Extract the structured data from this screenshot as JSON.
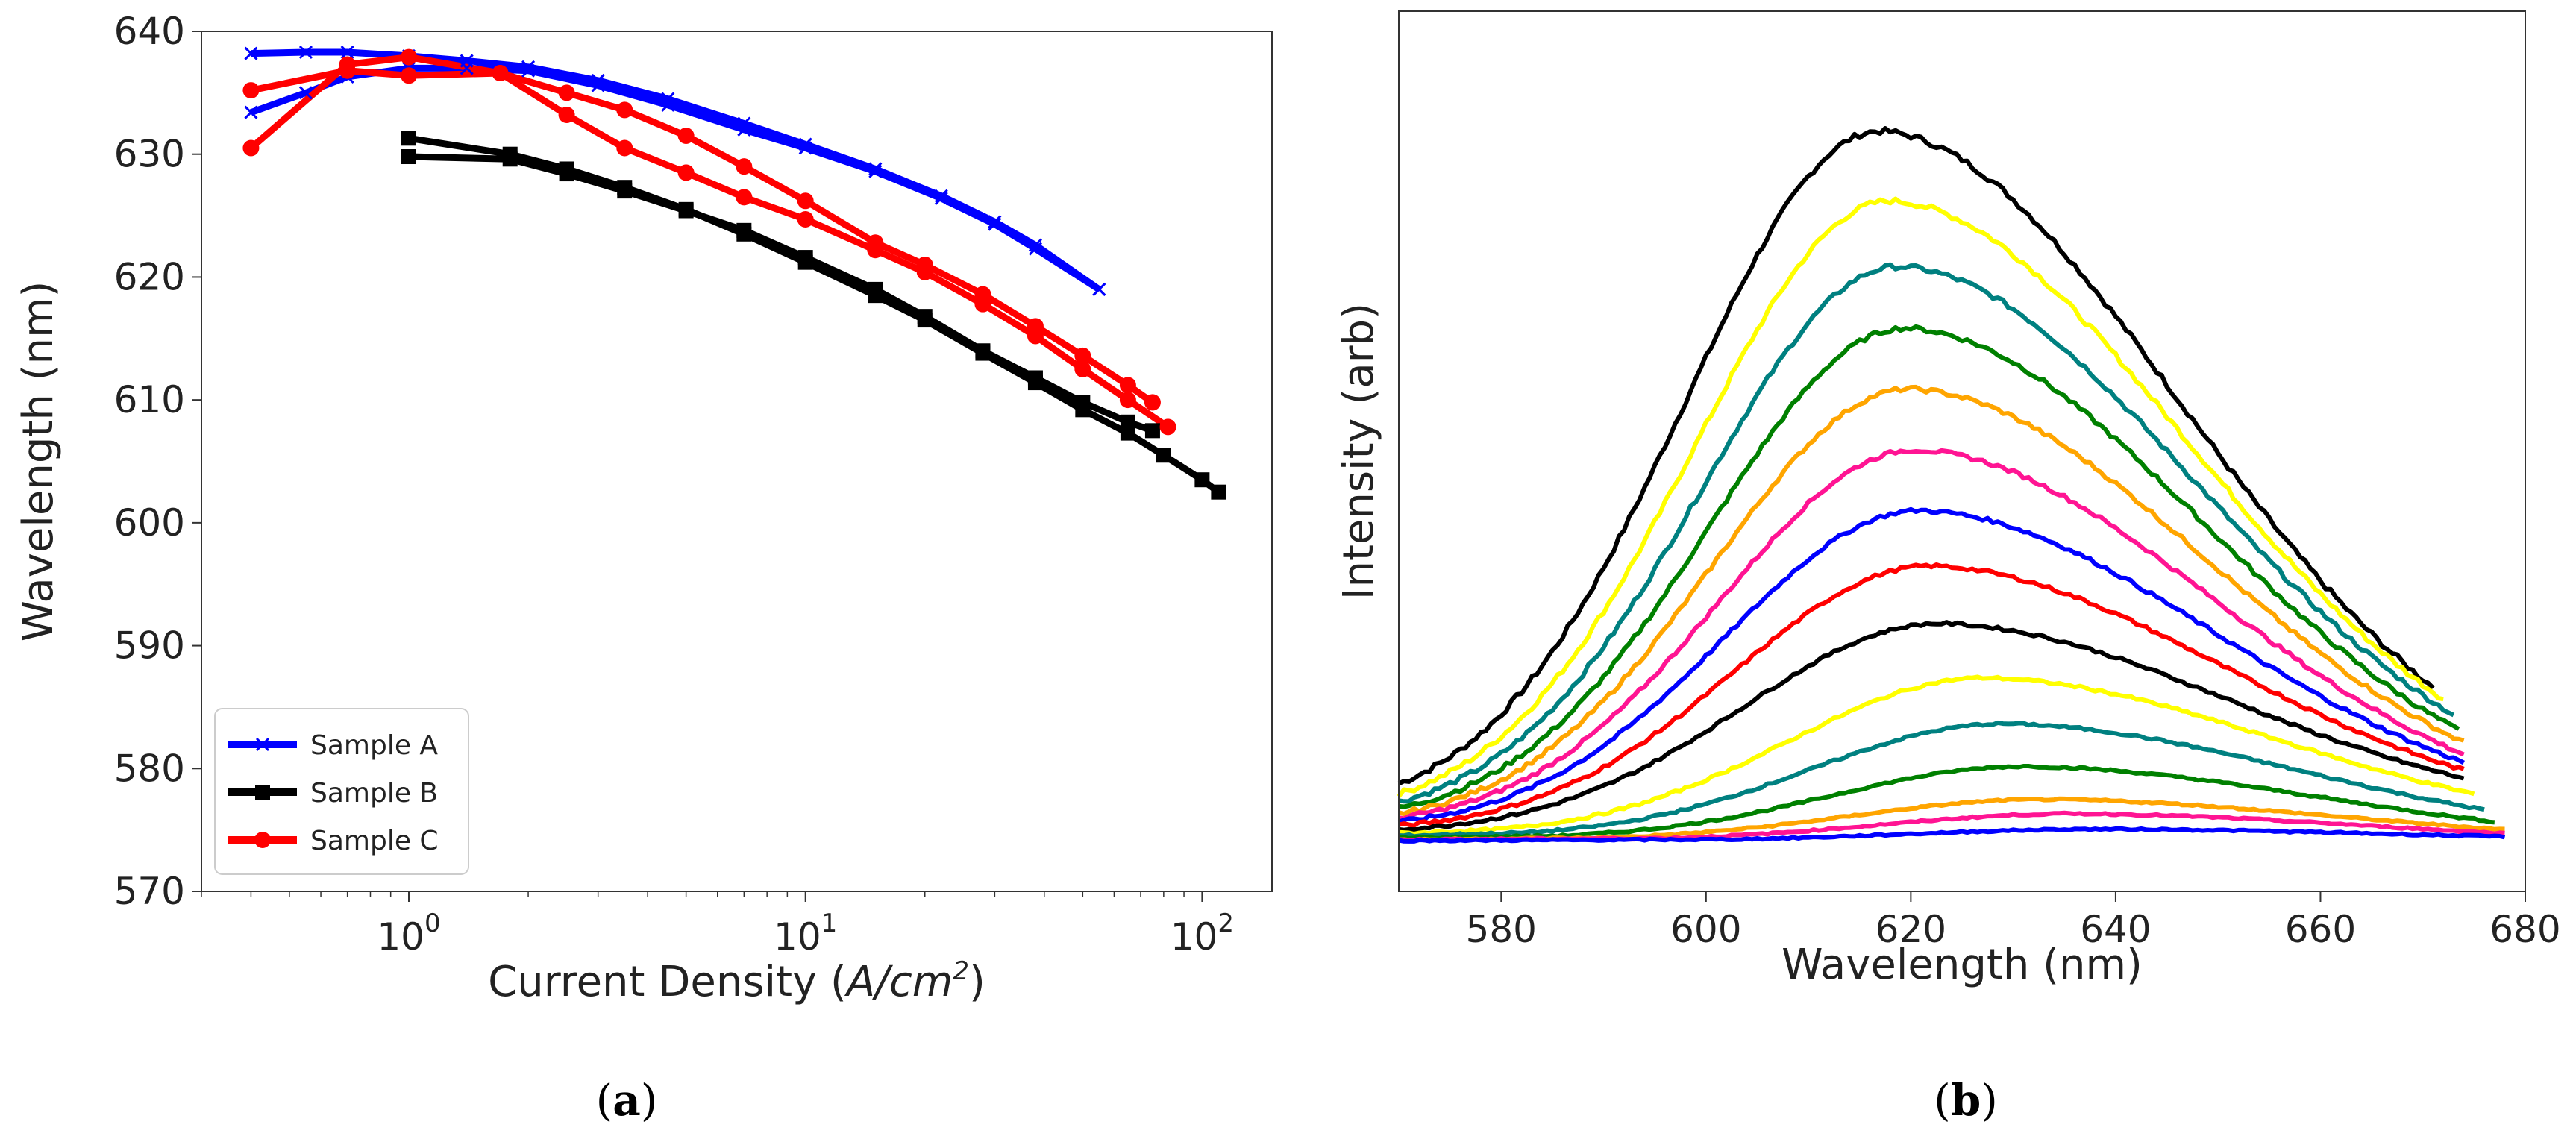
{
  "chart_data": [
    {
      "id": "a",
      "type": "line",
      "caption": "a",
      "xlabel_prefix": "Current Density (",
      "xlabel_math": "A/cm",
      "xlabel_sup": "2",
      "xlabel_suffix": ")",
      "ylabel": "Wavelength (nm)",
      "xscale": "log",
      "xlim": [
        0.3,
        150
      ],
      "ylim": [
        570,
        640
      ],
      "yticks": [
        570,
        580,
        590,
        600,
        610,
        620,
        630,
        640
      ],
      "xticks": [
        {
          "value": 1,
          "base": "10",
          "exp": "0"
        },
        {
          "value": 10,
          "base": "10",
          "exp": "1"
        },
        {
          "value": 100,
          "base": "10",
          "exp": "2"
        }
      ],
      "legend_position": "lower-left",
      "series": [
        {
          "name": "Sample A",
          "color": "#0000ff",
          "marker": "x",
          "lines": [
            {
              "x": [
                0.4,
                0.55,
                0.7,
                1.0,
                1.4,
                2.0,
                3.0,
                4.5,
                7,
                10,
                15,
                22,
                30,
                38,
                55
              ],
              "y": [
                638.2,
                638.3,
                638.3,
                638,
                637.6,
                637.1,
                636,
                634.5,
                632.5,
                630.8,
                628.8,
                626.6,
                624.5,
                622.6,
                619
              ]
            },
            {
              "x": [
                0.4,
                0.55,
                0.7,
                1.0,
                1.4,
                2.0,
                3.0,
                4.5,
                7,
                10,
                15,
                22,
                30,
                38,
                55
              ],
              "y": [
                633.4,
                635,
                636.3,
                637,
                637,
                636.8,
                635.6,
                634,
                632,
                630.5,
                628.6,
                626.4,
                624.3,
                622.3,
                619
              ]
            }
          ]
        },
        {
          "name": "Sample B",
          "color": "#000000",
          "marker": "s",
          "lines": [
            {
              "x": [
                1.0,
                1.8,
                2.5,
                3.5,
                5,
                7,
                10,
                15,
                20,
                28,
                38,
                50,
                65,
                80,
                100,
                110
              ],
              "y": [
                631.3,
                630,
                628.8,
                627.3,
                625.5,
                623.5,
                621.2,
                618.5,
                616.5,
                613.8,
                611.4,
                609.2,
                607.3,
                605.5,
                603.5,
                602.5
              ]
            },
            {
              "x": [
                1.0,
                1.8,
                2.5,
                3.5,
                5,
                7,
                10,
                15,
                20,
                28,
                38,
                50,
                65,
                75
              ],
              "y": [
                629.8,
                629.6,
                628.4,
                627,
                625.4,
                623.8,
                621.6,
                619,
                616.8,
                614,
                611.8,
                609.8,
                608.2,
                607.5
              ]
            }
          ]
        },
        {
          "name": "Sample C",
          "color": "#ff0000",
          "marker": "o",
          "lines": [
            {
              "x": [
                0.4,
                0.7,
                1.0,
                1.7,
                2.5,
                3.5,
                5,
                7,
                10,
                15,
                20,
                28,
                38,
                50,
                65,
                82
              ],
              "y": [
                630.5,
                637.3,
                637.9,
                636.6,
                633.2,
                630.5,
                628.5,
                626.5,
                624.7,
                622.2,
                620.4,
                617.8,
                615.2,
                612.5,
                610,
                607.8
              ]
            },
            {
              "x": [
                0.4,
                0.7,
                1.0,
                1.7,
                2.5,
                3.5,
                5,
                7,
                10,
                15,
                20,
                28,
                38,
                50,
                65,
                75
              ],
              "y": [
                635.2,
                636.8,
                636.4,
                636.6,
                635,
                633.6,
                631.5,
                629,
                626.2,
                622.8,
                621,
                618.6,
                616,
                613.6,
                611.2,
                609.8
              ]
            }
          ]
        }
      ]
    },
    {
      "id": "b",
      "type": "line",
      "caption": "b",
      "xlabel": "Wavelength (nm)",
      "ylabel": "Intensity (arb)",
      "xlim": [
        570,
        680
      ],
      "ylim": [
        0,
        1.0
      ],
      "xticks": [
        580,
        600,
        620,
        640,
        660,
        680
      ],
      "yticks_shown": false,
      "spectra": [
        {
          "color": "#000000",
          "peak": 1.0,
          "center": 617.5,
          "start": 0.073,
          "end": 0.195,
          "xmax": 671
        },
        {
          "color": "#ffff00",
          "peak": 0.9,
          "center": 618.5,
          "start": 0.06,
          "end": 0.18,
          "xmax": 672
        },
        {
          "color": "#008080",
          "peak": 0.806,
          "center": 619.3,
          "start": 0.05,
          "end": 0.16,
          "xmax": 673
        },
        {
          "color": "#008000",
          "peak": 0.72,
          "center": 620,
          "start": 0.042,
          "end": 0.14,
          "xmax": 673.5
        },
        {
          "color": "#ffa500",
          "peak": 0.634,
          "center": 620.4,
          "start": 0.035,
          "end": 0.125,
          "xmax": 674
        },
        {
          "color": "#ff1493",
          "peak": 0.55,
          "center": 621,
          "start": 0.03,
          "end": 0.11,
          "xmax": 674
        },
        {
          "color": "#0000ff",
          "peak": 0.466,
          "center": 621.5,
          "start": 0.025,
          "end": 0.1,
          "xmax": 674
        },
        {
          "color": "#ff0000",
          "peak": 0.39,
          "center": 622.5,
          "start": 0.02,
          "end": 0.09,
          "xmax": 674
        },
        {
          "color": "#000000",
          "peak": 0.31,
          "center": 623.5,
          "start": 0.015,
          "end": 0.08,
          "xmax": 674
        },
        {
          "color": "#ffff00",
          "peak": 0.24,
          "center": 628,
          "start": 0.01,
          "end": 0.06,
          "xmax": 675
        },
        {
          "color": "#008080",
          "peak": 0.175,
          "center": 630,
          "start": 0.007,
          "end": 0.04,
          "xmax": 676
        },
        {
          "color": "#008000",
          "peak": 0.113,
          "center": 632,
          "start": 0.004,
          "end": 0.025,
          "xmax": 677
        },
        {
          "color": "#ffa500",
          "peak": 0.064,
          "center": 634,
          "start": 0.002,
          "end": 0.015,
          "xmax": 678
        },
        {
          "color": "#ff1493",
          "peak": 0.044,
          "center": 637,
          "start": 0.002,
          "end": 0.01,
          "xmax": 678
        },
        {
          "color": "#0000ff",
          "peak": 0.02,
          "center": 640,
          "start": 0.001,
          "end": 0.006,
          "xmax": 678
        }
      ]
    }
  ]
}
